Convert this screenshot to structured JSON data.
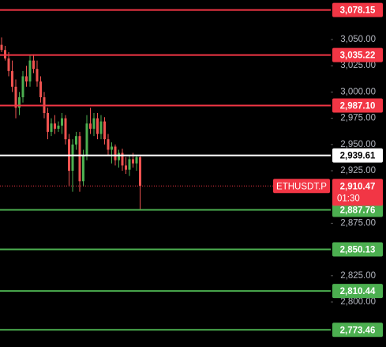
{
  "chart_data": {
    "type": "candlestick",
    "up_color": "#4caf50",
    "down_color": "#ef5350",
    "ylim": [
      2757.1,
      3087.65
    ],
    "yticks": [
      {
        "value": 3050,
        "label": "3,050.00"
      },
      {
        "value": 3025,
        "label": "3,025.00"
      },
      {
        "value": 3000,
        "label": "3,000.00"
      },
      {
        "value": 2975,
        "label": "2,975.00"
      },
      {
        "value": 2950,
        "label": "2,950.00"
      },
      {
        "value": 2925,
        "label": "2,925.00"
      },
      {
        "value": 2875,
        "label": "2,875.00"
      },
      {
        "value": 2825,
        "label": "2,825.00"
      },
      {
        "value": 2800,
        "label": "2,800.00"
      }
    ],
    "open": [
      3045,
      3040,
      3032,
      3020,
      3005,
      2985,
      2995,
      3015,
      3010,
      3030,
      3022,
      3010,
      2995,
      2980,
      2962,
      2970,
      2965,
      2968,
      2975,
      2955,
      2925,
      2950,
      2958,
      2915,
      2940,
      2970,
      2965,
      2975,
      2960,
      2972,
      2955,
      2945,
      2948,
      2935,
      2942,
      2930,
      2926,
      2936,
      2932,
      2938
    ],
    "high": [
      3052,
      3044,
      3038,
      3030,
      3012,
      3000,
      3020,
      3025,
      3035,
      3036,
      3030,
      3015,
      3000,
      2985,
      2975,
      2978,
      2972,
      2980,
      2978,
      2960,
      2955,
      2962,
      2962,
      2945,
      2978,
      2985,
      2980,
      2980,
      2978,
      2976,
      2960,
      2952,
      2950,
      2945,
      2946,
      2938,
      2940,
      2942,
      2940,
      2940
    ],
    "low": [
      3038,
      3030,
      3015,
      3000,
      2975,
      2978,
      2990,
      3005,
      3005,
      3018,
      3005,
      2990,
      2975,
      2955,
      2958,
      2960,
      2962,
      2960,
      2950,
      2910,
      2905,
      2945,
      2905,
      2910,
      2935,
      2960,
      2958,
      2955,
      2955,
      2950,
      2940,
      2932,
      2930,
      2928,
      2925,
      2922,
      2920,
      2928,
      2925,
      2887
    ],
    "close": [
      3040,
      3032,
      3020,
      3005,
      2985,
      2995,
      3015,
      3010,
      3030,
      3022,
      3010,
      2995,
      2980,
      2962,
      2970,
      2965,
      2968,
      2975,
      2955,
      2925,
      2950,
      2958,
      2915,
      2940,
      2970,
      2965,
      2975,
      2960,
      2972,
      2955,
      2945,
      2948,
      2935,
      2942,
      2930,
      2926,
      2936,
      2932,
      2938,
      2910.47
    ],
    "levels": [
      {
        "value": 3078.15,
        "label": "3,078.15",
        "color": "#f23645"
      },
      {
        "value": 3035.22,
        "label": "3,035.22",
        "color": "#f23645"
      },
      {
        "value": 2987.1,
        "label": "2,987.10",
        "color": "#f23645"
      },
      {
        "value": 2939.61,
        "label": "2,939.61",
        "color": "#ffffff"
      },
      {
        "value": 2887.76,
        "label": "2,887.76",
        "color": "#4caf50"
      },
      {
        "value": 2850.13,
        "label": "2,850.13",
        "color": "#4caf50"
      },
      {
        "value": 2810.44,
        "label": "2,810.44",
        "color": "#4caf50"
      },
      {
        "value": 2773.46,
        "label": "2,773.46",
        "color": "#4caf50"
      }
    ],
    "last_price": {
      "symbol": "ETHUSDT.P",
      "value": 2910.47,
      "label": "2,910.47",
      "countdown": "01:30",
      "color": "#f23645"
    }
  }
}
